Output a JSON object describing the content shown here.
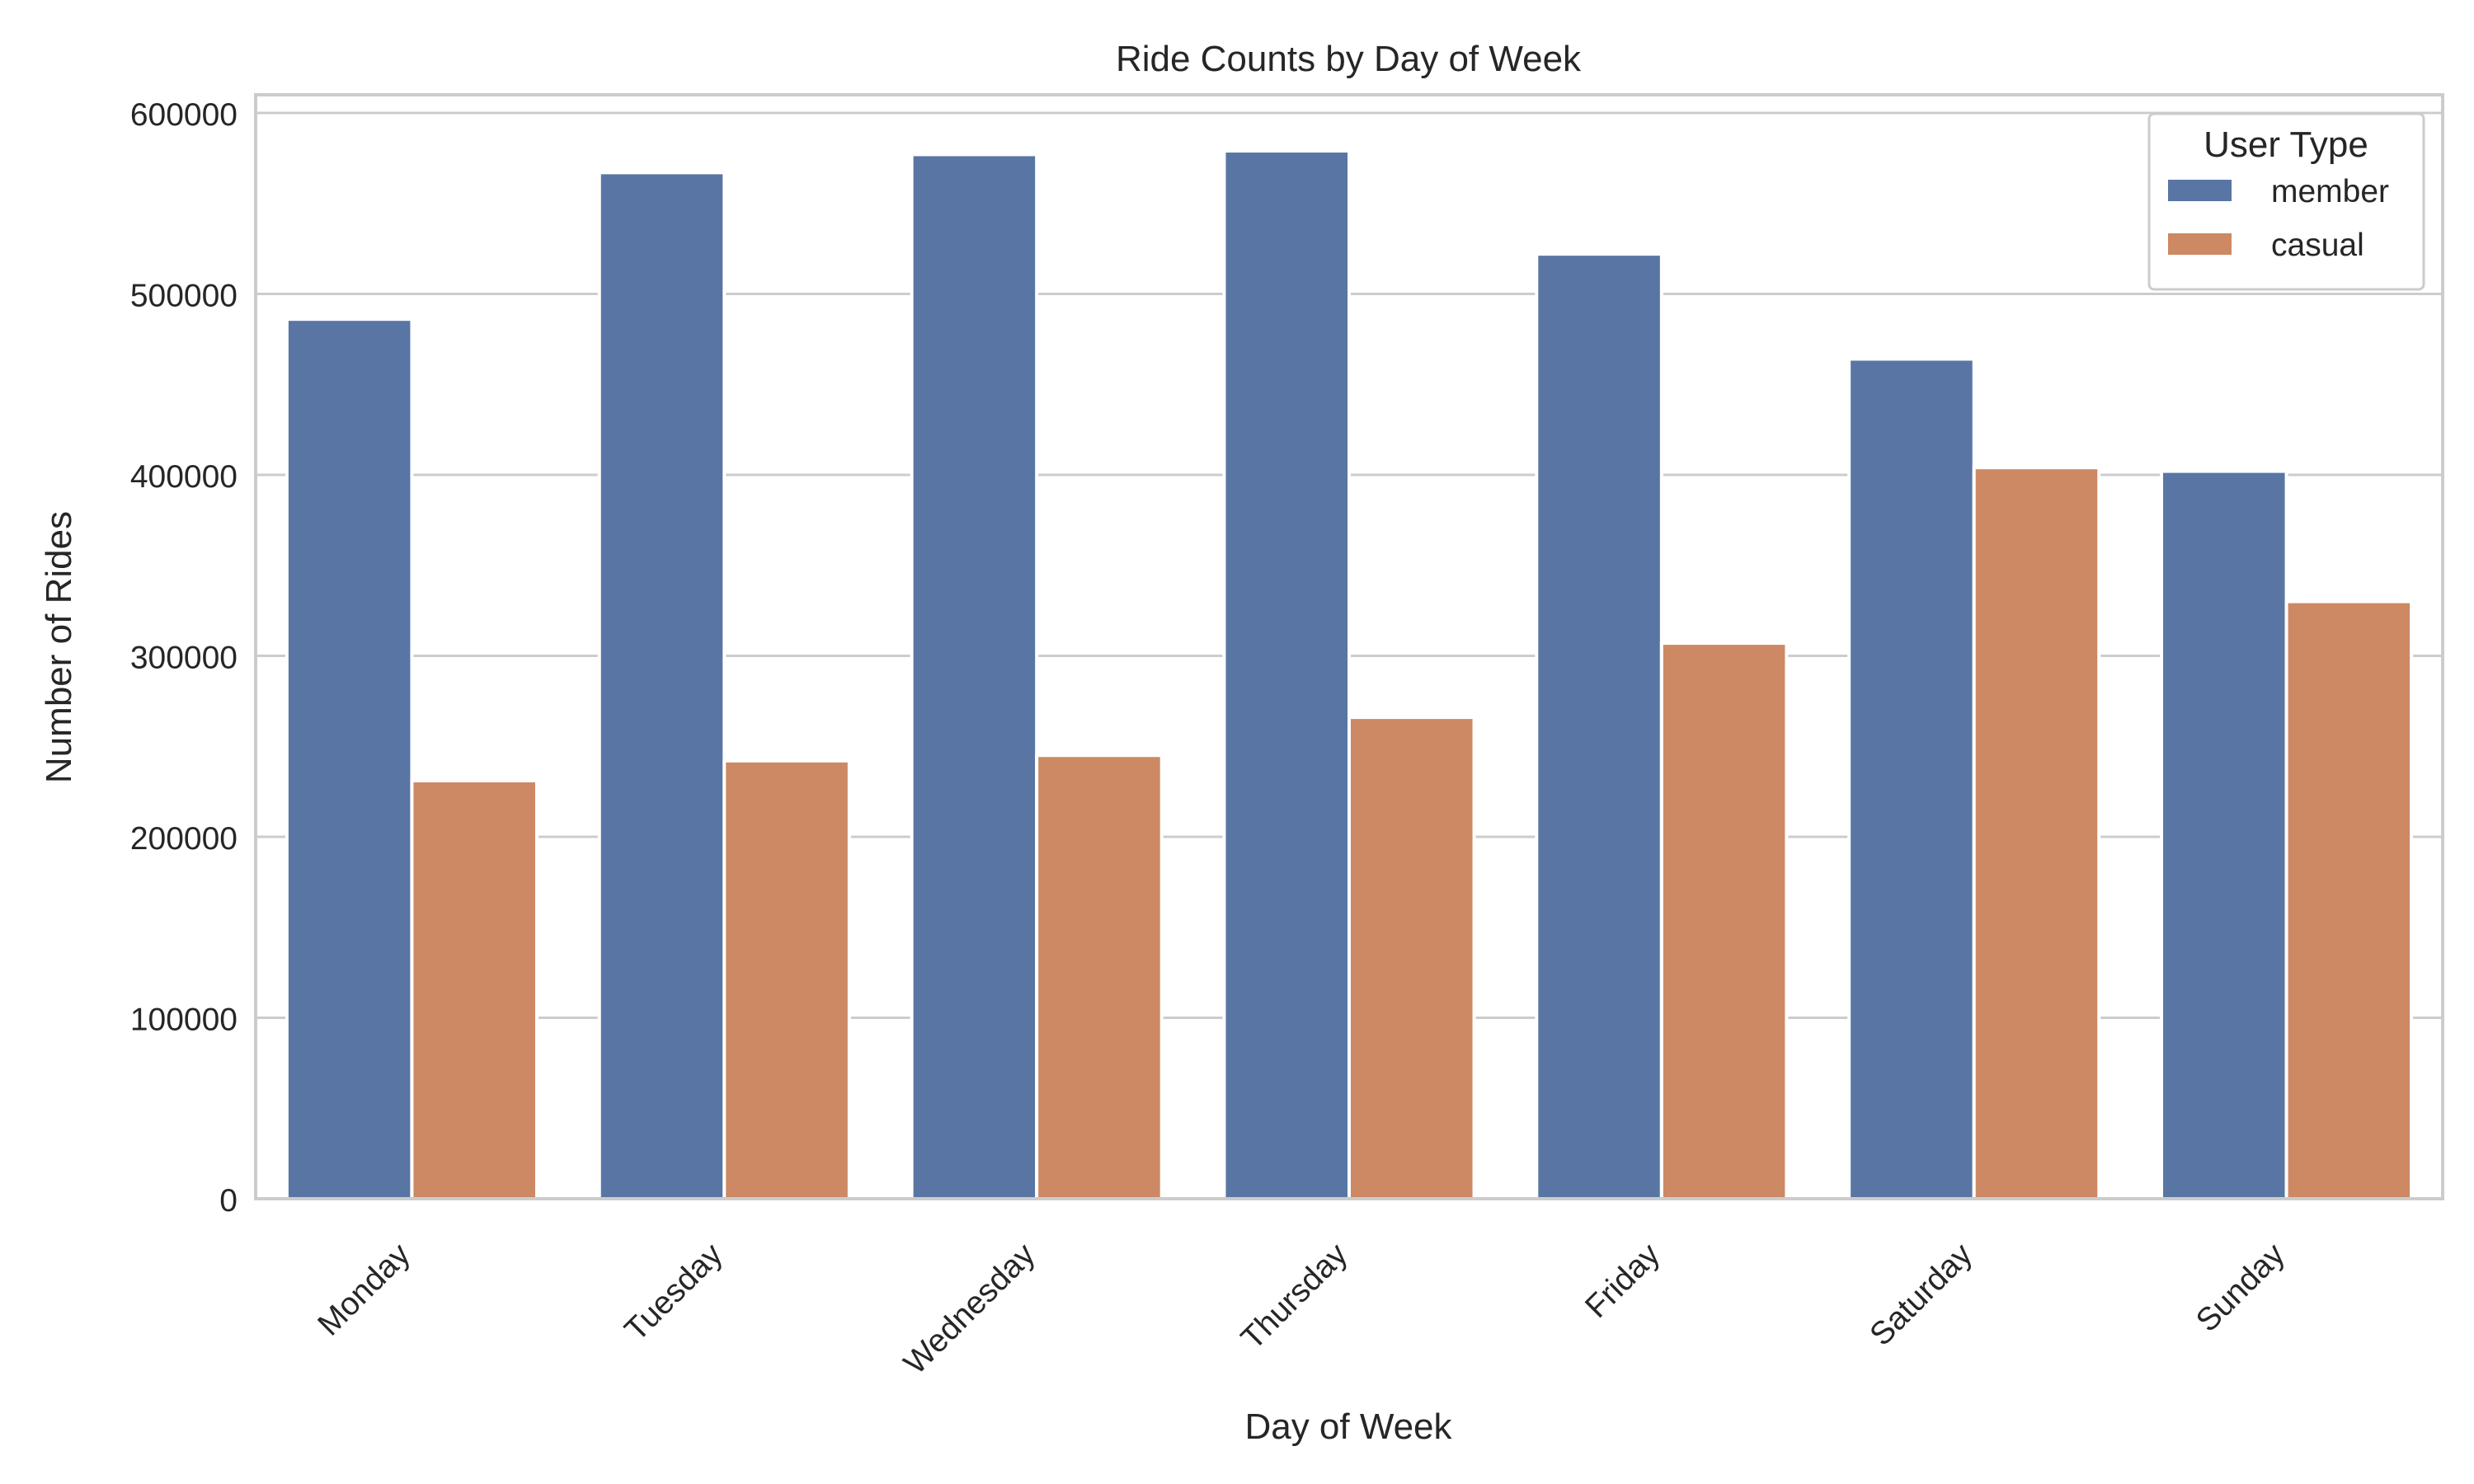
{
  "chart_data": {
    "type": "bar",
    "title": "Ride Counts by Day of Week",
    "xlabel": "Day of Week",
    "ylabel": "Number of Rides",
    "categories": [
      "Monday",
      "Tuesday",
      "Wednesday",
      "Thursday",
      "Friday",
      "Saturday",
      "Sunday"
    ],
    "series": [
      {
        "name": "member",
        "color": "#5875a4",
        "values": [
          486000,
          567000,
          577000,
          579000,
          522000,
          464000,
          402000
        ]
      },
      {
        "name": "casual",
        "color": "#cc8963",
        "values": [
          231000,
          242000,
          245000,
          266000,
          307000,
          404000,
          330000
        ]
      }
    ],
    "ylim": [
      0,
      610000
    ],
    "yticks": [
      0,
      100000,
      200000,
      300000,
      400000,
      500000,
      600000
    ],
    "ytick_labels": [
      "0",
      "100000",
      "200000",
      "300000",
      "400000",
      "500000",
      "600000"
    ],
    "grid": true,
    "legend": {
      "title": "User Type",
      "placement": "top-right"
    }
  }
}
